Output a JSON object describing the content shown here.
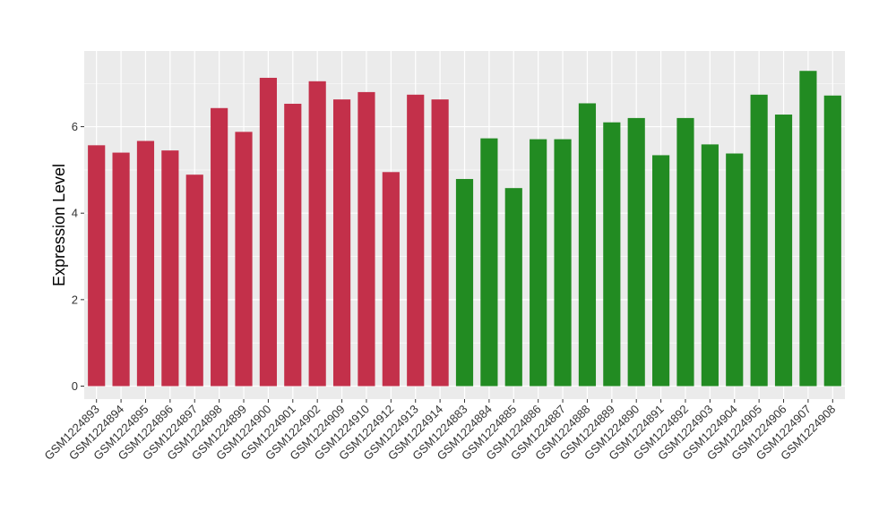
{
  "chart_data": {
    "type": "bar",
    "title": "",
    "xlabel": "",
    "ylabel": "Expression Level",
    "ylim": [
      -0.3,
      7.75
    ],
    "yticks": [
      0,
      2,
      4,
      6
    ],
    "grid": true,
    "legend": "none",
    "colors": {
      "group1": "#c3304a",
      "group2": "#228b22",
      "panel": "#ebebeb",
      "grid": "#ffffff"
    },
    "categories": [
      "GSM1224893",
      "GSM1224894",
      "GSM1224895",
      "GSM1224896",
      "GSM1224897",
      "GSM1224898",
      "GSM1224899",
      "GSM1224900",
      "GSM1224901",
      "GSM1224902",
      "GSM1224909",
      "GSM1224910",
      "GSM1224912",
      "GSM1224913",
      "GSM1224914",
      "GSM1224883",
      "GSM1224884",
      "GSM1224885",
      "GSM1224886",
      "GSM1224887",
      "GSM1224888",
      "GSM1224889",
      "GSM1224890",
      "GSM1224891",
      "GSM1224892",
      "GSM1224903",
      "GSM1224904",
      "GSM1224905",
      "GSM1224906",
      "GSM1224907",
      "GSM1224908"
    ],
    "values": [
      5.57,
      5.4,
      5.67,
      5.45,
      4.89,
      6.43,
      5.88,
      7.13,
      6.53,
      7.05,
      6.63,
      6.8,
      4.95,
      6.74,
      6.63,
      4.79,
      5.73,
      4.58,
      5.71,
      5.71,
      6.54,
      6.1,
      6.2,
      5.34,
      6.2,
      5.59,
      5.38,
      6.74,
      6.28,
      7.29,
      6.72
    ],
    "group": [
      1,
      1,
      1,
      1,
      1,
      1,
      1,
      1,
      1,
      1,
      1,
      1,
      1,
      1,
      1,
      2,
      2,
      2,
      2,
      2,
      2,
      2,
      2,
      2,
      2,
      2,
      2,
      2,
      2,
      2,
      2
    ]
  }
}
